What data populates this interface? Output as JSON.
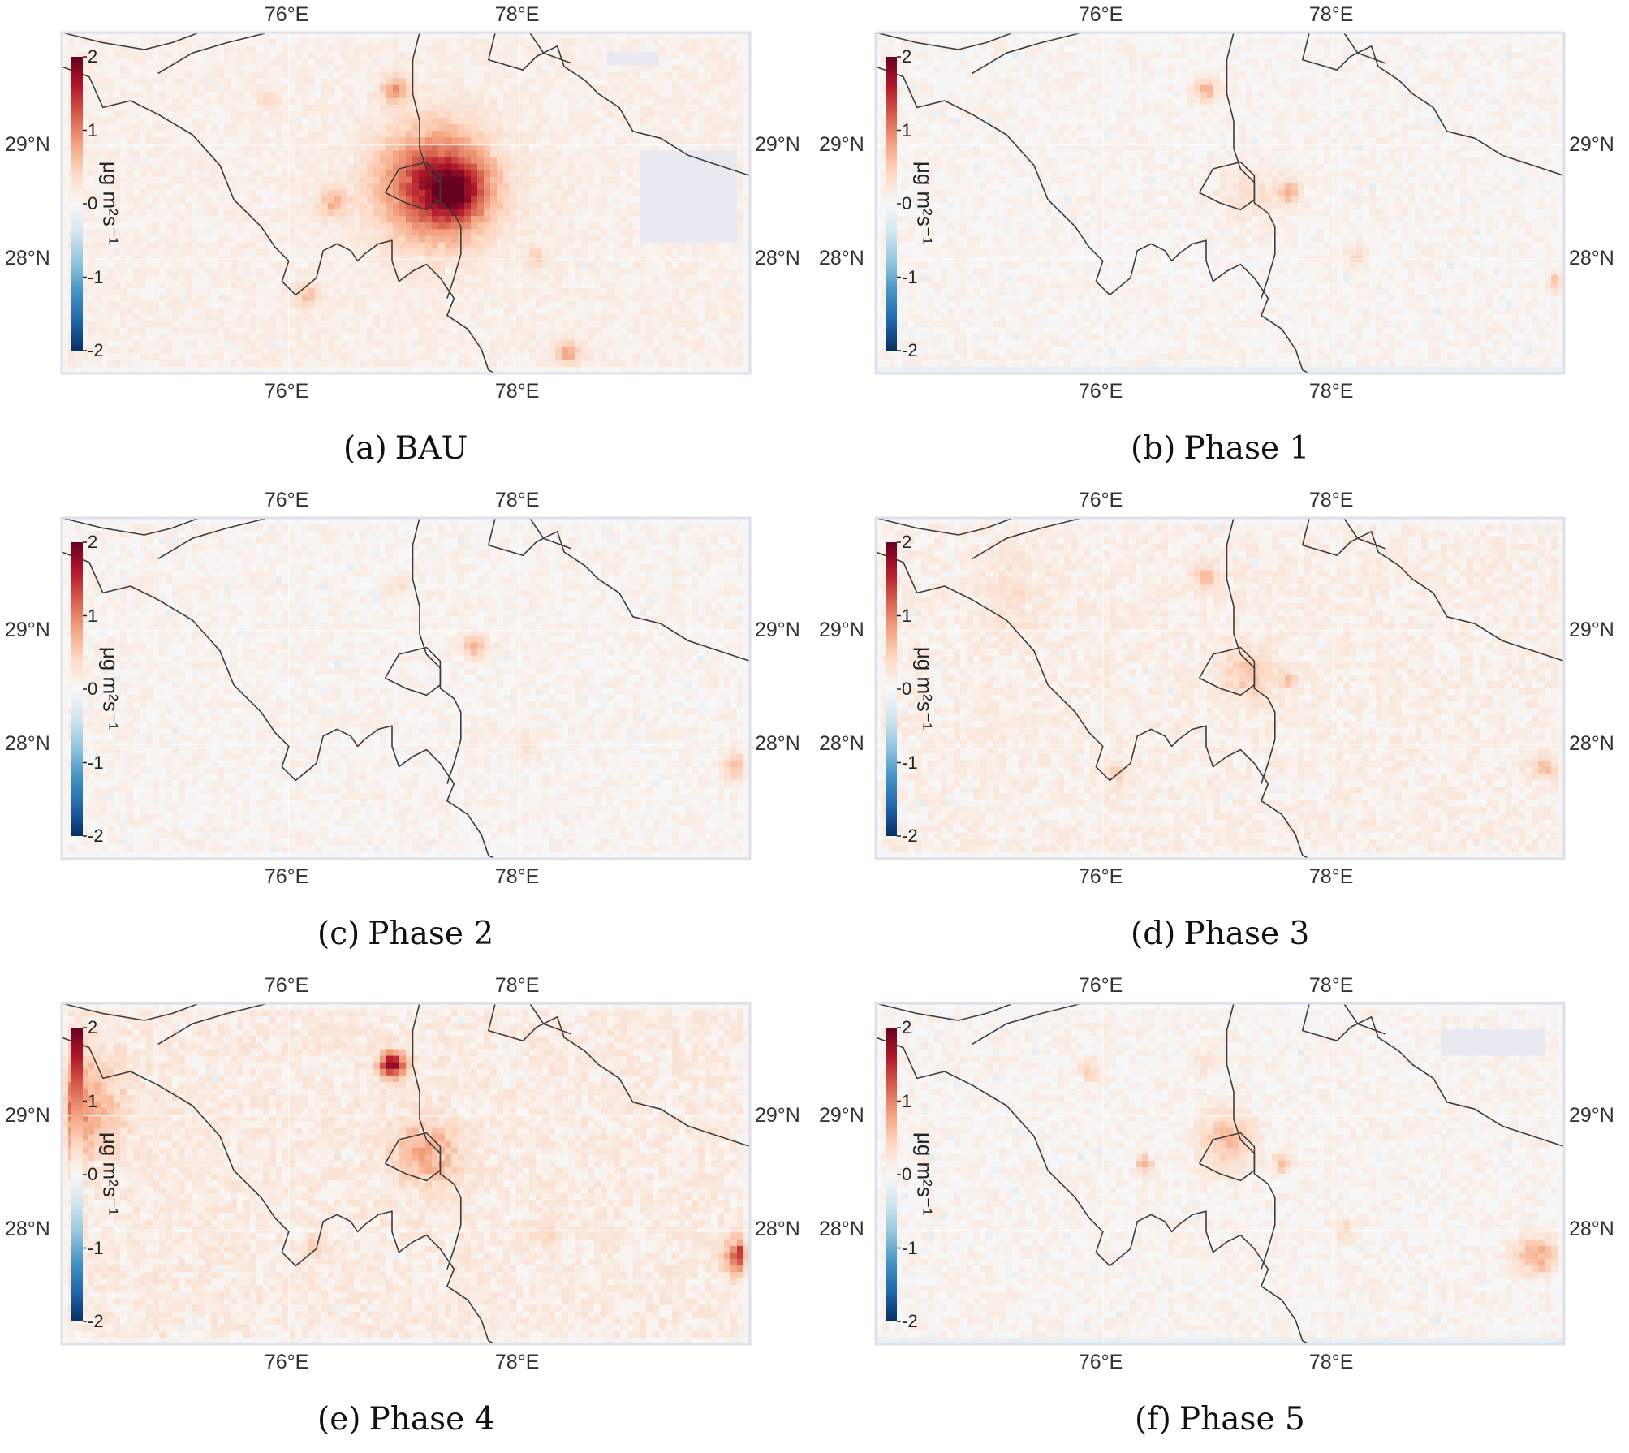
{
  "colors": {
    "colormap": [
      "#053061",
      "#2166ac",
      "#4393c3",
      "#92c5de",
      "#d1e5f0",
      "#f7f7f7",
      "#fddbc7",
      "#f4a582",
      "#d6604d",
      "#b2182b",
      "#67001f"
    ],
    "border": "#3c3c3c",
    "nodata": "#e8e9f1",
    "frame": "#dde0ec"
  },
  "axes": {
    "lon_labels": [
      "76°E",
      "78°E"
    ],
    "lat_labels": [
      "29°N",
      "28°N"
    ],
    "colorbar_ticks": [
      "2",
      "1",
      "0",
      "-1",
      "-2"
    ],
    "colorbar_units": "μg m²s⁻¹",
    "value_range": [
      -2,
      2
    ]
  },
  "panels": [
    {
      "letter": "(a)",
      "label": "BAU"
    },
    {
      "letter": "(b)",
      "label": "Phase 1"
    },
    {
      "letter": "(c)",
      "label": "Phase 2"
    },
    {
      "letter": "(d)",
      "label": "Phase 3"
    },
    {
      "letter": "(e)",
      "label": "Phase 4"
    },
    {
      "letter": "(f)",
      "label": "Phase 5"
    }
  ]
}
